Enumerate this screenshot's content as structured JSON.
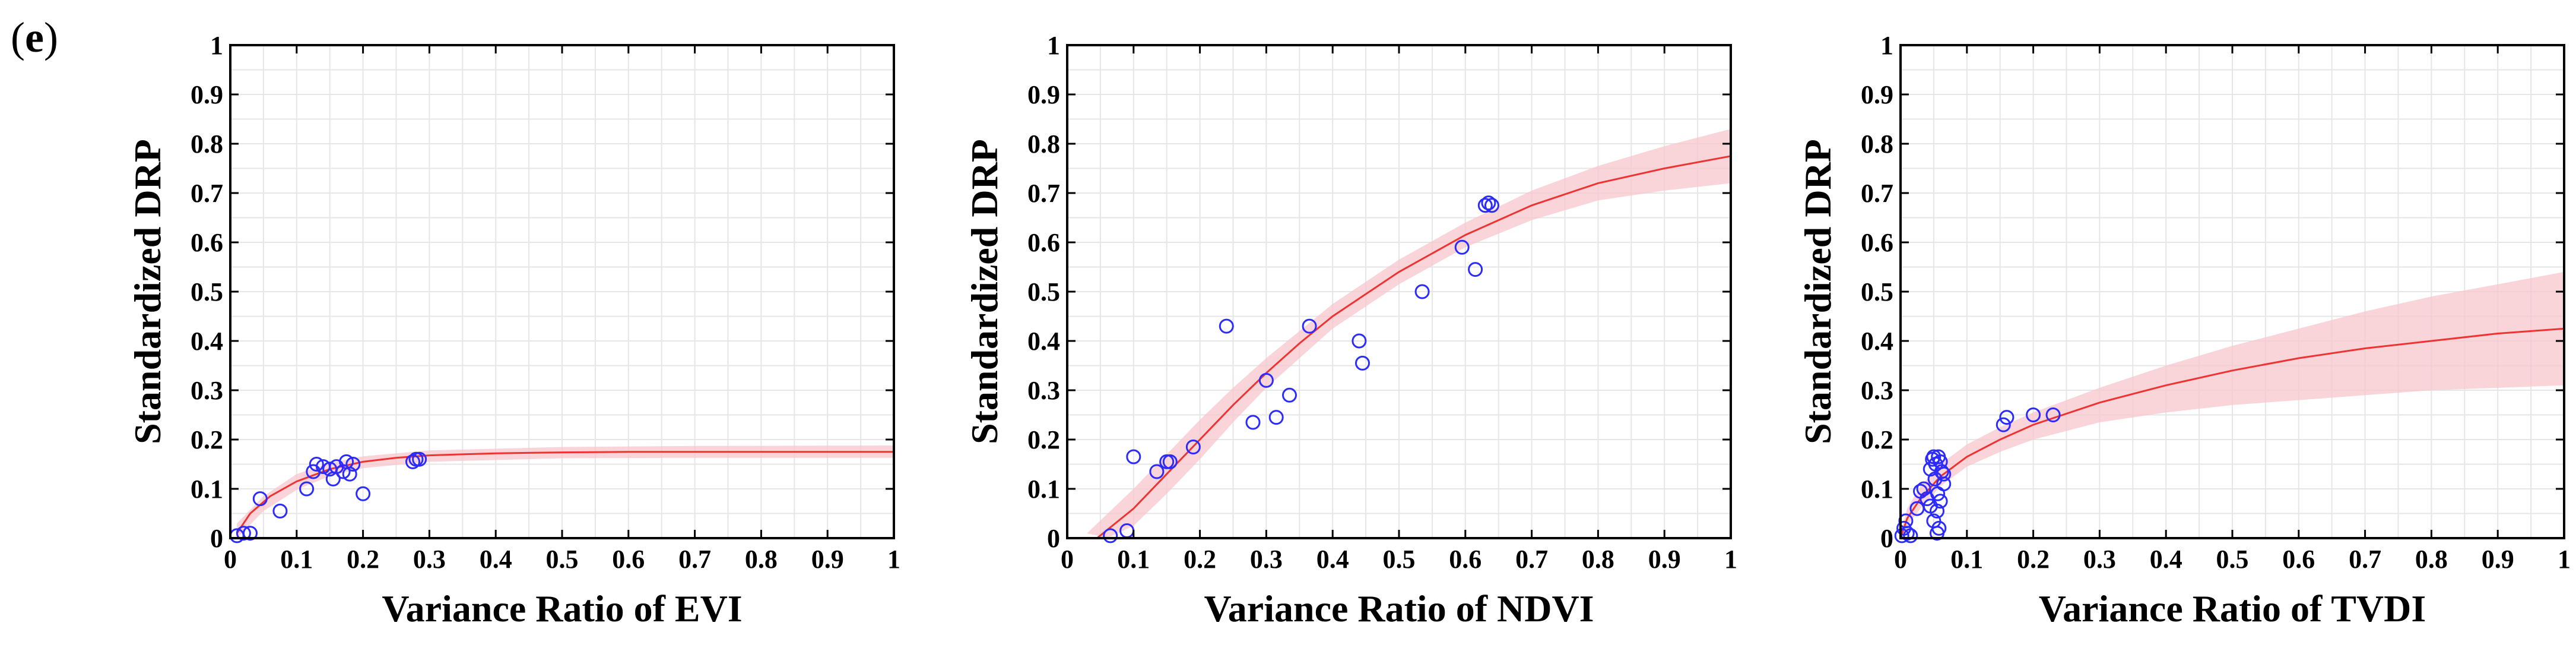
{
  "panel_label": {
    "open": "(",
    "letter": "e",
    "close": ")"
  },
  "colors": {
    "points": "#2b2bff",
    "curve": "#ee3333",
    "band": "#f7c6cc",
    "grid": "#e6e6e6",
    "axis": "#000000"
  },
  "chart_data": [
    {
      "type": "scatter",
      "xlabel": "Variance Ratio of EVI",
      "ylabel": "Standardized DRP",
      "xlim": [
        0,
        1
      ],
      "ylim": [
        0,
        1
      ],
      "xticks": [
        "0",
        "0.1",
        "0.2",
        "0.3",
        "0.4",
        "0.5",
        "0.6",
        "0.7",
        "0.8",
        "0.9",
        "1"
      ],
      "yticks": [
        "0",
        "0.1",
        "0.2",
        "0.3",
        "0.4",
        "0.5",
        "0.6",
        "0.7",
        "0.8",
        "0.9",
        "1"
      ],
      "grid": true,
      "points": [
        [
          0.01,
          0.005
        ],
        [
          0.02,
          0.01
        ],
        [
          0.03,
          0.01
        ],
        [
          0.045,
          0.08
        ],
        [
          0.075,
          0.055
        ],
        [
          0.115,
          0.1
        ],
        [
          0.125,
          0.135
        ],
        [
          0.13,
          0.15
        ],
        [
          0.14,
          0.145
        ],
        [
          0.15,
          0.14
        ],
        [
          0.155,
          0.12
        ],
        [
          0.16,
          0.145
        ],
        [
          0.17,
          0.135
        ],
        [
          0.175,
          0.155
        ],
        [
          0.18,
          0.13
        ],
        [
          0.185,
          0.15
        ],
        [
          0.2,
          0.09
        ],
        [
          0.275,
          0.155
        ],
        [
          0.28,
          0.16
        ],
        [
          0.285,
          0.16
        ]
      ],
      "fit": [
        [
          0.01,
          0.01
        ],
        [
          0.03,
          0.05
        ],
        [
          0.06,
          0.085
        ],
        [
          0.1,
          0.115
        ],
        [
          0.15,
          0.14
        ],
        [
          0.2,
          0.155
        ],
        [
          0.25,
          0.163
        ],
        [
          0.3,
          0.168
        ],
        [
          0.4,
          0.172
        ],
        [
          0.5,
          0.174
        ],
        [
          0.6,
          0.175
        ],
        [
          0.8,
          0.175
        ],
        [
          1.0,
          0.175
        ]
      ],
      "band_upper": [
        [
          0.01,
          0.03
        ],
        [
          0.05,
          0.085
        ],
        [
          0.1,
          0.13
        ],
        [
          0.15,
          0.152
        ],
        [
          0.2,
          0.166
        ],
        [
          0.3,
          0.178
        ],
        [
          0.5,
          0.185
        ],
        [
          0.7,
          0.187
        ],
        [
          1.0,
          0.188
        ]
      ],
      "band_lower": [
        [
          0.01,
          0.0
        ],
        [
          0.05,
          0.055
        ],
        [
          0.1,
          0.098
        ],
        [
          0.15,
          0.126
        ],
        [
          0.2,
          0.142
        ],
        [
          0.3,
          0.155
        ],
        [
          0.5,
          0.162
        ],
        [
          0.7,
          0.163
        ],
        [
          1.0,
          0.163
        ]
      ]
    },
    {
      "type": "scatter",
      "xlabel": "Variance Ratio of NDVI",
      "ylabel": "Standardized DRP",
      "xlim": [
        0,
        1
      ],
      "ylim": [
        0,
        1
      ],
      "xticks": [
        "0",
        "0.1",
        "0.2",
        "0.3",
        "0.4",
        "0.5",
        "0.6",
        "0.7",
        "0.8",
        "0.9",
        "1"
      ],
      "yticks": [
        "0",
        "0.1",
        "0.2",
        "0.3",
        "0.4",
        "0.5",
        "0.6",
        "0.7",
        "0.8",
        "0.9",
        "1"
      ],
      "grid": true,
      "points": [
        [
          0.065,
          0.005
        ],
        [
          0.09,
          0.015
        ],
        [
          0.1,
          0.165
        ],
        [
          0.135,
          0.135
        ],
        [
          0.15,
          0.155
        ],
        [
          0.155,
          0.155
        ],
        [
          0.19,
          0.185
        ],
        [
          0.24,
          0.43
        ],
        [
          0.28,
          0.235
        ],
        [
          0.3,
          0.32
        ],
        [
          0.315,
          0.245
        ],
        [
          0.335,
          0.29
        ],
        [
          0.365,
          0.43
        ],
        [
          0.44,
          0.4
        ],
        [
          0.445,
          0.355
        ],
        [
          0.535,
          0.5
        ],
        [
          0.595,
          0.59
        ],
        [
          0.615,
          0.545
        ],
        [
          0.63,
          0.675
        ],
        [
          0.635,
          0.68
        ],
        [
          0.64,
          0.675
        ]
      ],
      "fit": [
        [
          0.045,
          0.0
        ],
        [
          0.1,
          0.06
        ],
        [
          0.15,
          0.13
        ],
        [
          0.2,
          0.2
        ],
        [
          0.25,
          0.27
        ],
        [
          0.3,
          0.335
        ],
        [
          0.35,
          0.395
        ],
        [
          0.4,
          0.45
        ],
        [
          0.5,
          0.54
        ],
        [
          0.6,
          0.615
        ],
        [
          0.7,
          0.675
        ],
        [
          0.8,
          0.72
        ],
        [
          0.9,
          0.75
        ],
        [
          1.0,
          0.775
        ]
      ],
      "band_upper": [
        [
          0.03,
          0.01
        ],
        [
          0.1,
          0.1
        ],
        [
          0.15,
          0.17
        ],
        [
          0.2,
          0.24
        ],
        [
          0.25,
          0.305
        ],
        [
          0.3,
          0.365
        ],
        [
          0.4,
          0.475
        ],
        [
          0.5,
          0.565
        ],
        [
          0.6,
          0.64
        ],
        [
          0.7,
          0.705
        ],
        [
          0.8,
          0.755
        ],
        [
          0.9,
          0.795
        ],
        [
          1.0,
          0.83
        ]
      ],
      "band_lower": [
        [
          0.06,
          0.0
        ],
        [
          0.1,
          0.025
        ],
        [
          0.15,
          0.09
        ],
        [
          0.2,
          0.16
        ],
        [
          0.25,
          0.235
        ],
        [
          0.3,
          0.305
        ],
        [
          0.4,
          0.425
        ],
        [
          0.5,
          0.515
        ],
        [
          0.6,
          0.59
        ],
        [
          0.7,
          0.645
        ],
        [
          0.8,
          0.685
        ],
        [
          0.9,
          0.705
        ],
        [
          1.0,
          0.72
        ]
      ]
    },
    {
      "type": "scatter",
      "xlabel": "Variance Ratio of TVDI",
      "ylabel": "Standardized DRP",
      "xlim": [
        0,
        1
      ],
      "ylim": [
        0,
        1
      ],
      "xticks": [
        "0",
        "0.1",
        "0.2",
        "0.3",
        "0.4",
        "0.5",
        "0.6",
        "0.7",
        "0.8",
        "0.9",
        "1"
      ],
      "yticks": [
        "0",
        "0.1",
        "0.2",
        "0.3",
        "0.4",
        "0.5",
        "0.6",
        "0.7",
        "0.8",
        "0.9",
        "1"
      ],
      "grid": true,
      "points": [
        [
          0.002,
          0.005
        ],
        [
          0.005,
          0.02
        ],
        [
          0.008,
          0.035
        ],
        [
          0.01,
          0.01
        ],
        [
          0.015,
          0.005
        ],
        [
          0.025,
          0.06
        ],
        [
          0.03,
          0.095
        ],
        [
          0.035,
          0.1
        ],
        [
          0.04,
          0.08
        ],
        [
          0.045,
          0.065
        ],
        [
          0.045,
          0.14
        ],
        [
          0.048,
          0.16
        ],
        [
          0.05,
          0.165
        ],
        [
          0.05,
          0.035
        ],
        [
          0.052,
          0.12
        ],
        [
          0.053,
          0.15
        ],
        [
          0.055,
          0.01
        ],
        [
          0.055,
          0.055
        ],
        [
          0.056,
          0.09
        ],
        [
          0.057,
          0.165
        ],
        [
          0.058,
          0.02
        ],
        [
          0.06,
          0.075
        ],
        [
          0.06,
          0.155
        ],
        [
          0.062,
          0.135
        ],
        [
          0.065,
          0.13
        ],
        [
          0.065,
          0.11
        ],
        [
          0.155,
          0.23
        ],
        [
          0.16,
          0.245
        ],
        [
          0.2,
          0.25
        ],
        [
          0.23,
          0.25
        ]
      ],
      "fit": [
        [
          0.0,
          0.0
        ],
        [
          0.01,
          0.04
        ],
        [
          0.03,
          0.08
        ],
        [
          0.06,
          0.125
        ],
        [
          0.1,
          0.165
        ],
        [
          0.15,
          0.2
        ],
        [
          0.2,
          0.23
        ],
        [
          0.3,
          0.275
        ],
        [
          0.4,
          0.31
        ],
        [
          0.5,
          0.34
        ],
        [
          0.6,
          0.365
        ],
        [
          0.7,
          0.385
        ],
        [
          0.8,
          0.4
        ],
        [
          0.9,
          0.415
        ],
        [
          1.0,
          0.425
        ]
      ],
      "band_upper": [
        [
          0.0,
          0.01
        ],
        [
          0.01,
          0.06
        ],
        [
          0.03,
          0.105
        ],
        [
          0.06,
          0.15
        ],
        [
          0.1,
          0.19
        ],
        [
          0.15,
          0.225
        ],
        [
          0.2,
          0.255
        ],
        [
          0.3,
          0.305
        ],
        [
          0.4,
          0.35
        ],
        [
          0.5,
          0.39
        ],
        [
          0.6,
          0.425
        ],
        [
          0.7,
          0.46
        ],
        [
          0.8,
          0.49
        ],
        [
          0.9,
          0.515
        ],
        [
          1.0,
          0.54
        ]
      ],
      "band_lower": [
        [
          0.0,
          0.0
        ],
        [
          0.01,
          0.025
        ],
        [
          0.03,
          0.06
        ],
        [
          0.06,
          0.105
        ],
        [
          0.1,
          0.145
        ],
        [
          0.15,
          0.175
        ],
        [
          0.2,
          0.2
        ],
        [
          0.3,
          0.235
        ],
        [
          0.4,
          0.255
        ],
        [
          0.5,
          0.27
        ],
        [
          0.6,
          0.28
        ],
        [
          0.7,
          0.29
        ],
        [
          0.8,
          0.3
        ],
        [
          0.9,
          0.305
        ],
        [
          1.0,
          0.31
        ]
      ]
    }
  ]
}
